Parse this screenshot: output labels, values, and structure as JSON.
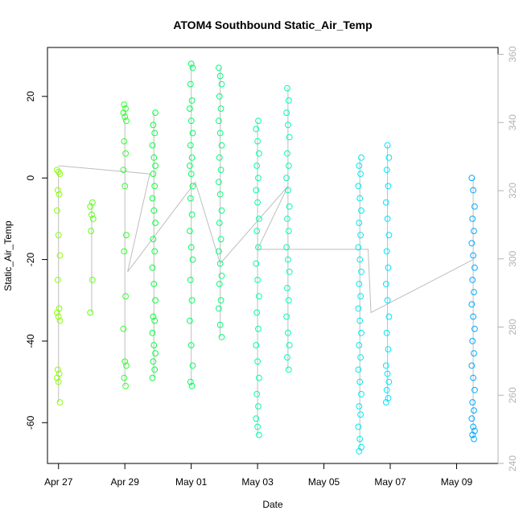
{
  "chart_data": {
    "type": "scatter",
    "title": "ATOM4 Southbound Static_Air_Temp",
    "xlabel": "Date",
    "ylabel": "Static_Air_Temp",
    "x_ticks": [
      "Apr 27",
      "Apr 29",
      "May 01",
      "May 03",
      "May 05",
      "May 07",
      "May 09"
    ],
    "y_ticks": [
      "-60",
      "-40",
      "-20",
      "0",
      "20"
    ],
    "y2_ticks": [
      "240",
      "260",
      "280",
      "300",
      "320",
      "340",
      "360"
    ],
    "xlim": [
      "2016-04-26T16:00",
      "2016-05-10T06:00"
    ],
    "ylim": [
      -70,
      32
    ],
    "y2lim": [
      240,
      362
    ],
    "grid": false,
    "colors": {
      "line": "#bebebe",
      "right_axis": "#b3b3b3",
      "point_gradient": [
        "#9aff00",
        "#00ff40",
        "#00ffb0",
        "#00e5ff",
        "#0099ff"
      ]
    },
    "point_groups": [
      {
        "date": "2016-04-27T00:00",
        "values": [
          2,
          1.5,
          1,
          -3,
          -4,
          -8,
          -14,
          -19,
          -25,
          -32,
          -33,
          -34,
          -35,
          -47,
          -48,
          -49,
          -50,
          -55
        ]
      },
      {
        "date": "2016-04-28T00:00",
        "values": [
          -6,
          -7,
          -9,
          -10,
          -13,
          -25,
          -33
        ]
      },
      {
        "date": "2016-04-29T00:00",
        "values": [
          18,
          17,
          16,
          15,
          14,
          9,
          6,
          2,
          -2,
          -14,
          -18,
          -29,
          -37,
          -45,
          -46,
          -49,
          -51
        ]
      },
      {
        "date": "2016-04-29T21:00",
        "values": [
          16,
          13,
          11,
          8,
          5,
          3,
          1,
          -2,
          -5,
          -8,
          -11,
          -15,
          -18,
          -22,
          -26,
          -30,
          -34,
          -35,
          -38,
          -41,
          -43,
          -45,
          -47,
          -49
        ]
      },
      {
        "date": "2016-05-01T00:00",
        "values": [
          28,
          27,
          23,
          19,
          17,
          14,
          11,
          8,
          5,
          3,
          1,
          -2,
          -5,
          -9,
          -13,
          -17,
          -20,
          -25,
          -30,
          -35,
          -41,
          -46,
          -50,
          -51
        ]
      },
      {
        "date": "2016-05-01T21:00",
        "values": [
          27,
          25,
          23,
          20,
          17,
          14,
          11,
          8,
          5,
          2,
          -1,
          -4,
          -8,
          -11,
          -15,
          -18,
          -21,
          -24,
          -26,
          -30,
          -32,
          -36,
          -39
        ]
      },
      {
        "date": "2016-05-03T00:00",
        "values": [
          14,
          12,
          9,
          6,
          3,
          0,
          -3,
          -6,
          -10,
          -13,
          -17,
          -21,
          -25,
          -29,
          -33,
          -37,
          -41,
          -45,
          -49,
          -53,
          -56,
          -59,
          -61,
          -63
        ]
      },
      {
        "date": "2016-05-03T22:00",
        "values": [
          22,
          19,
          16,
          13,
          10,
          6,
          3,
          0,
          -3,
          -7,
          -10,
          -13,
          -17,
          -20,
          -23,
          -27,
          -30,
          -34,
          -38,
          -41,
          -44,
          -47
        ]
      },
      {
        "date": "2016-05-06T02:00",
        "values": [
          5,
          3,
          1,
          -2,
          -5,
          -8,
          -11,
          -14,
          -17,
          -20,
          -23,
          -26,
          -29,
          -32,
          -35,
          -38,
          -41,
          -44,
          -47,
          -50,
          -53,
          -56,
          -58,
          -61,
          -64,
          -66,
          -67
        ]
      },
      {
        "date": "2016-05-06T22:00",
        "values": [
          8,
          5,
          2,
          -2,
          -6,
          -10,
          -14,
          -18,
          -22,
          -26,
          -30,
          -34,
          -38,
          -42,
          -46,
          -48,
          -50,
          -52,
          -54,
          -55
        ]
      },
      {
        "date": "2016-05-09T12:00",
        "values": [
          0,
          -3,
          -7,
          -10,
          -13,
          -16,
          -19,
          -22,
          -25,
          -28,
          -31,
          -34,
          -37,
          -40,
          -43,
          -46,
          -49,
          -52,
          -55,
          -57,
          -59,
          -61,
          -62,
          -63,
          -64
        ]
      }
    ],
    "series_line": [
      {
        "date": "2016-04-27T00:00",
        "value": 3
      },
      {
        "date": "2016-04-29T18:00",
        "value": 1
      },
      {
        "date": "2016-04-29T02:00",
        "value": -23
      },
      {
        "date": "2016-05-01T03:00",
        "value": -1
      },
      {
        "date": "2016-05-01T21:00",
        "value": -21
      },
      {
        "date": "2016-05-03T22:00",
        "value": -2
      },
      {
        "date": "2016-05-03T00:00",
        "value": -17.5
      },
      {
        "date": "2016-05-06T08:00",
        "value": -17.5
      },
      {
        "date": "2016-05-06T10:00",
        "value": -33
      },
      {
        "date": "2016-05-09T12:00",
        "value": -20
      }
    ]
  }
}
